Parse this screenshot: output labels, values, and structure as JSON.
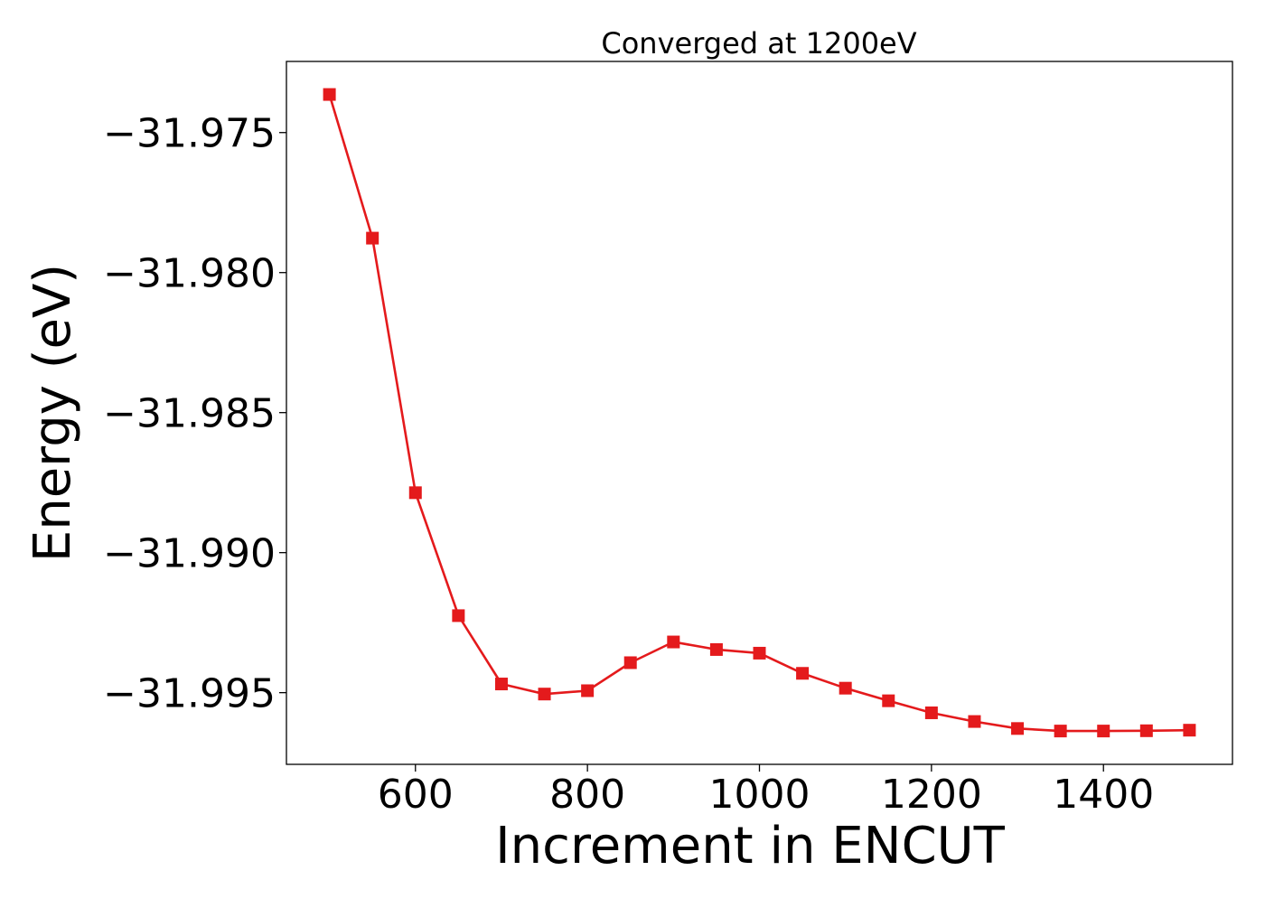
{
  "chart_data": {
    "type": "line",
    "title": "Converged at 1200eV",
    "xlabel": "Increment in ENCUT",
    "ylabel": "Energy (eV)",
    "xlim": [
      450,
      1550
    ],
    "ylim": [
      -31.99756,
      -31.97246
    ],
    "x_ticks": [
      600,
      800,
      1000,
      1200,
      1400
    ],
    "x_tick_labels": [
      "600",
      "800",
      "1000",
      "1200",
      "1400"
    ],
    "y_ticks": [
      -31.975,
      -31.98,
      -31.985,
      -31.99,
      -31.995
    ],
    "y_tick_labels": [
      "−31.975",
      "−31.980",
      "−31.985",
      "−31.990",
      "−31.995"
    ],
    "grid": false,
    "series": [
      {
        "color": "#e41a1c",
        "marker": "square",
        "x": [
          500,
          550,
          600,
          650,
          700,
          750,
          800,
          850,
          900,
          950,
          1000,
          1050,
          1100,
          1150,
          1200,
          1250,
          1300,
          1350,
          1400,
          1450,
          1500
        ],
        "y": [
          -31.97364,
          -31.97877,
          -31.98786,
          -31.99225,
          -31.99469,
          -31.99505,
          -31.99493,
          -31.99393,
          -31.99319,
          -31.99346,
          -31.99359,
          -31.99431,
          -31.99484,
          -31.99529,
          -31.99572,
          -31.99603,
          -31.99628,
          -31.99637,
          -31.99637,
          -31.99636,
          -31.99634
        ]
      }
    ]
  }
}
